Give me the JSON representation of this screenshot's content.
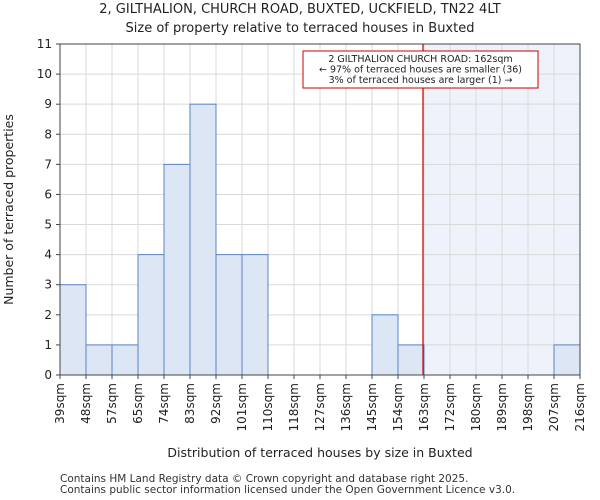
{
  "page": {
    "title_line1": "2, GILTHALION, CHURCH ROAD, BUXTED, UCKFIELD, TN22 4LT",
    "title_line2": "Size of property relative to terraced houses in Buxted",
    "footer_line1": "Contains HM Land Registry data © Crown copyright and database right 2025.",
    "footer_line2": "Contains public sector information licensed under the Open Government Licence v3.0."
  },
  "chart_data": {
    "type": "bar",
    "xlabel": "Distribution of terraced houses by size in Buxted",
    "ylabel": "Number of terraced properties",
    "ylim": [
      0,
      11
    ],
    "yticks": [
      0,
      1,
      2,
      3,
      4,
      5,
      6,
      7,
      8,
      9,
      10,
      11
    ],
    "grid": true,
    "bin_edges_labels": [
      "39sqm",
      "48sqm",
      "57sqm",
      "65sqm",
      "74sqm",
      "83sqm",
      "92sqm",
      "101sqm",
      "110sqm",
      "118sqm",
      "127sqm",
      "136sqm",
      "145sqm",
      "154sqm",
      "163sqm",
      "172sqm",
      "180sqm",
      "189sqm",
      "198sqm",
      "207sqm",
      "216sqm"
    ],
    "values": [
      3,
      1,
      1,
      4,
      7,
      9,
      4,
      4,
      0,
      0,
      0,
      0,
      2,
      1,
      0,
      0,
      0,
      0,
      0,
      1
    ],
    "marker_bin": 14,
    "shade_from_bin": 14,
    "annotation": {
      "lines": [
        "2 GILTHALION CHURCH ROAD: 162sqm",
        "← 97% of terraced houses are smaller (36)",
        "3% of terraced houses are larger (1) →"
      ]
    },
    "colors": {
      "bar_fill": "#dce6f4",
      "bar_edge": "#5b84c4",
      "shade": "#eef2fb",
      "marker": "#cc0000",
      "grid": "#d9d9d9"
    }
  }
}
